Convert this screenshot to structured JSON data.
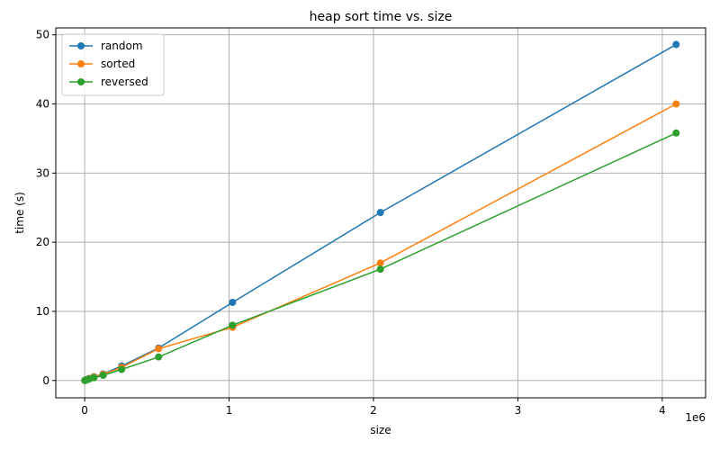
{
  "chart_data": {
    "type": "line",
    "title": "heap sort time vs. size",
    "xlabel": "size",
    "ylabel": "time (s)",
    "x_offset_label": "1e6",
    "xlim": [
      -200000,
      4300000
    ],
    "ylim": [
      -2.5,
      51
    ],
    "x_ticks": [
      0,
      1000000,
      2000000,
      3000000,
      4000000
    ],
    "x_tick_labels": [
      "0",
      "1",
      "2",
      "3",
      "4"
    ],
    "y_ticks": [
      0,
      10,
      20,
      30,
      40,
      50
    ],
    "y_tick_labels": [
      "0",
      "10",
      "20",
      "30",
      "40",
      "50"
    ],
    "grid": true,
    "legend_position": "top-left",
    "x": [
      1000,
      2000,
      4000,
      8000,
      16000,
      32000,
      64000,
      128000,
      256000,
      512000,
      1024000,
      2048000,
      4096000
    ],
    "series": [
      {
        "name": "random",
        "color": "#1f77b4",
        "values": [
          0.01,
          0.02,
          0.04,
          0.07,
          0.15,
          0.3,
          0.55,
          0.95,
          2.1,
          4.7,
          11.3,
          24.3,
          48.6
        ]
      },
      {
        "name": "sorted",
        "color": "#ff7f0e",
        "values": [
          0.01,
          0.02,
          0.04,
          0.07,
          0.14,
          0.28,
          0.5,
          0.9,
          1.9,
          4.6,
          7.7,
          17.0,
          40.0
        ]
      },
      {
        "name": "reversed",
        "color": "#2ca02c",
        "values": [
          0.01,
          0.02,
          0.03,
          0.06,
          0.12,
          0.22,
          0.4,
          0.75,
          1.6,
          3.4,
          8.0,
          16.1,
          35.8
        ]
      }
    ]
  }
}
